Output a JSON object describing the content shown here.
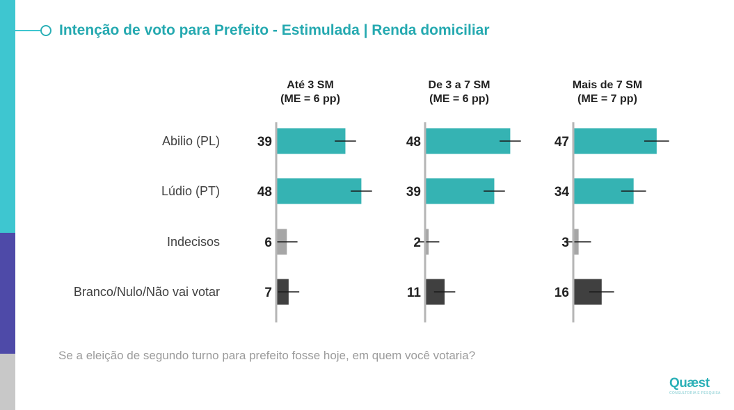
{
  "title": "Intenção de voto para Prefeito - Estimulada | Renda domiciliar",
  "question": "Se a eleição de segundo turno para prefeito fosse hoje, em quem você votaria?",
  "logo": {
    "name": "Quæst",
    "tagline": "CONSULTORIA E PESQUISA"
  },
  "colors": {
    "teal_bar": "#35b3b3",
    "gray_bar": "#a6a6a6",
    "dark_bar": "#404040",
    "title": "#25a9b0",
    "strip_teal": "#3ec6d0",
    "strip_purple": "#4e4aa8",
    "strip_gray": "#c8c8c8"
  },
  "chart_data": {
    "type": "bar",
    "orientation": "horizontal",
    "title": "Intenção de voto para Prefeito - Estimulada | Renda domiciliar",
    "categories": [
      "Abilio (PL)",
      "Lúdio (PT)",
      "Indecisos",
      "Branco/Nulo/Não vai votar"
    ],
    "series": [
      {
        "name": "Até 3 SM",
        "margin": "(ME = 6 pp)",
        "me": 6,
        "values": [
          39,
          48,
          6,
          7
        ]
      },
      {
        "name": "De 3 a 7 SM",
        "margin": "(ME = 6 pp)",
        "me": 6,
        "values": [
          48,
          39,
          2,
          11
        ]
      },
      {
        "name": "Mais de 7 SM",
        "margin": "(ME = 7 pp)",
        "me": 7,
        "values": [
          47,
          34,
          3,
          16
        ]
      }
    ],
    "category_colors": [
      "#35b3b3",
      "#35b3b3",
      "#a6a6a6",
      "#404040"
    ],
    "error_bars": true,
    "xlim": [
      0,
      100
    ],
    "grid": false,
    "legend": "none"
  }
}
